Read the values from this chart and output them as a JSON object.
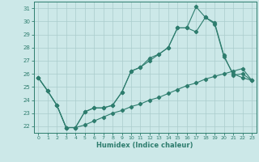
{
  "xlabel": "Humidex (Indice chaleur)",
  "background_color": "#cce8e8",
  "line_color": "#2e7d6e",
  "grid_color": "#aacccc",
  "xlim": [
    -0.5,
    23.5
  ],
  "ylim": [
    21.5,
    31.5
  ],
  "xticks": [
    0,
    1,
    2,
    3,
    4,
    5,
    6,
    7,
    8,
    9,
    10,
    11,
    12,
    13,
    14,
    15,
    16,
    17,
    18,
    19,
    20,
    21,
    22,
    23
  ],
  "yticks": [
    22,
    23,
    24,
    25,
    26,
    27,
    28,
    29,
    30,
    31
  ],
  "line1_x": [
    0,
    1,
    2,
    3,
    4,
    5,
    6,
    7,
    8,
    9,
    10,
    11,
    12,
    13,
    14,
    15,
    16,
    17,
    18,
    19,
    20,
    21,
    22,
    23
  ],
  "line1_y": [
    25.7,
    24.7,
    23.6,
    21.9,
    21.9,
    23.1,
    23.4,
    23.4,
    23.6,
    24.6,
    26.2,
    26.5,
    27.0,
    27.5,
    28.0,
    29.5,
    29.5,
    31.1,
    30.3,
    29.8,
    27.3,
    26.0,
    25.7,
    25.5
  ],
  "line2_x": [
    0,
    1,
    2,
    3,
    4,
    5,
    6,
    7,
    8,
    9,
    10,
    11,
    12,
    13,
    14,
    15,
    16,
    17,
    18,
    19,
    20,
    21,
    22,
    23
  ],
  "line2_y": [
    25.7,
    24.7,
    23.6,
    21.9,
    21.9,
    23.1,
    23.4,
    23.4,
    23.6,
    24.6,
    26.2,
    26.5,
    27.2,
    27.5,
    28.0,
    29.5,
    29.5,
    29.2,
    30.3,
    29.9,
    27.4,
    25.9,
    26.0,
    25.5
  ],
  "line3_x": [
    0,
    1,
    2,
    3,
    4,
    5,
    6,
    7,
    8,
    9,
    10,
    11,
    12,
    13,
    14,
    15,
    16,
    17,
    18,
    19,
    20,
    21,
    22,
    23
  ],
  "line3_y": [
    25.7,
    24.7,
    23.6,
    21.9,
    21.9,
    22.1,
    22.4,
    22.7,
    23.0,
    23.2,
    23.5,
    23.7,
    24.0,
    24.2,
    24.5,
    24.8,
    25.1,
    25.3,
    25.6,
    25.8,
    26.0,
    26.2,
    26.4,
    25.5
  ]
}
